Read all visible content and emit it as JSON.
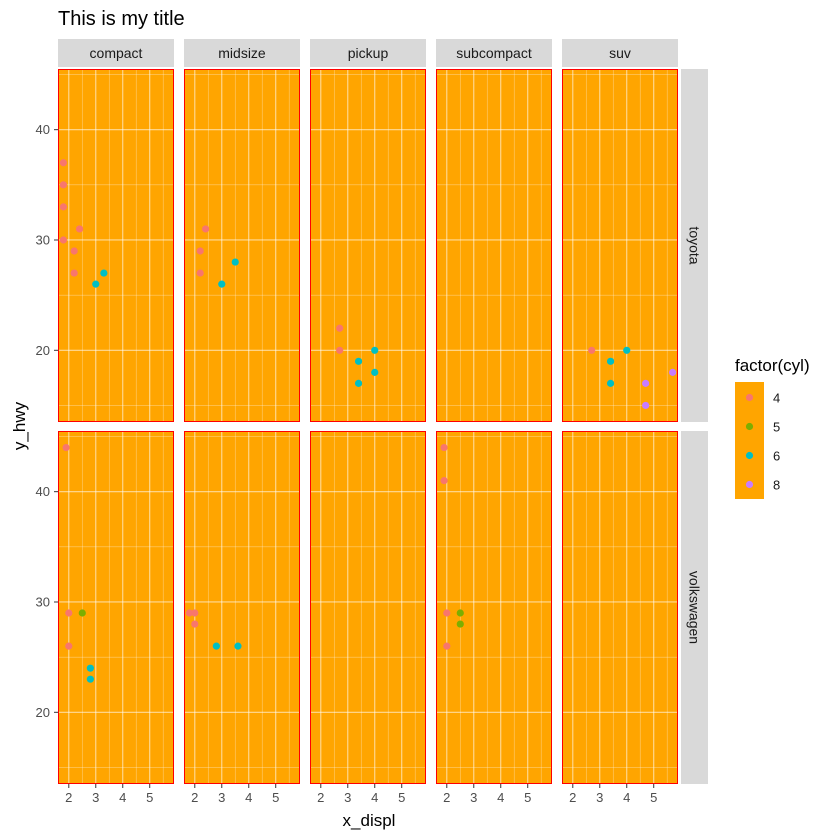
{
  "chart_data": {
    "type": "scatter",
    "title": "This is my title",
    "xlabel": "x_displ",
    "ylabel": "y_hwy",
    "xlim": [
      1.6,
      5.9
    ],
    "ylim": [
      13.5,
      45.5
    ],
    "xticks": [
      2,
      3,
      4,
      5
    ],
    "yticks": [
      20,
      30,
      40
    ],
    "col_facets": [
      "compact",
      "midsize",
      "pickup",
      "subcompact",
      "suv"
    ],
    "row_facets": [
      "toyota",
      "volkswagen"
    ],
    "panel_fill": "#FFA500",
    "panel_border": "#FF0000",
    "grid": true,
    "legend": {
      "title": "factor(cyl)",
      "placement": "right",
      "background": "#FFA500",
      "entries": [
        {
          "label": "4",
          "color": "#F8766D"
        },
        {
          "label": "5",
          "color": "#7CAE00"
        },
        {
          "label": "6",
          "color": "#00BFC4"
        },
        {
          "label": "8",
          "color": "#C77CFF"
        }
      ]
    },
    "points": [
      {
        "row": "toyota",
        "col": "compact",
        "cyl": "4",
        "x": 1.8,
        "y": 37
      },
      {
        "row": "toyota",
        "col": "compact",
        "cyl": "4",
        "x": 1.8,
        "y": 35
      },
      {
        "row": "toyota",
        "col": "compact",
        "cyl": "4",
        "x": 1.8,
        "y": 33
      },
      {
        "row": "toyota",
        "col": "compact",
        "cyl": "4",
        "x": 1.8,
        "y": 30
      },
      {
        "row": "toyota",
        "col": "compact",
        "cyl": "4",
        "x": 2.2,
        "y": 29
      },
      {
        "row": "toyota",
        "col": "compact",
        "cyl": "4",
        "x": 2.2,
        "y": 27
      },
      {
        "row": "toyota",
        "col": "compact",
        "cyl": "4",
        "x": 2.4,
        "y": 31
      },
      {
        "row": "toyota",
        "col": "compact",
        "cyl": "6",
        "x": 3.0,
        "y": 26
      },
      {
        "row": "toyota",
        "col": "compact",
        "cyl": "6",
        "x": 3.3,
        "y": 27
      },
      {
        "row": "toyota",
        "col": "midsize",
        "cyl": "4",
        "x": 2.2,
        "y": 29
      },
      {
        "row": "toyota",
        "col": "midsize",
        "cyl": "4",
        "x": 2.2,
        "y": 27
      },
      {
        "row": "toyota",
        "col": "midsize",
        "cyl": "4",
        "x": 2.4,
        "y": 31
      },
      {
        "row": "toyota",
        "col": "midsize",
        "cyl": "6",
        "x": 3.0,
        "y": 26
      },
      {
        "row": "toyota",
        "col": "midsize",
        "cyl": "6",
        "x": 3.5,
        "y": 28
      },
      {
        "row": "toyota",
        "col": "pickup",
        "cyl": "4",
        "x": 2.7,
        "y": 22
      },
      {
        "row": "toyota",
        "col": "pickup",
        "cyl": "4",
        "x": 2.7,
        "y": 20
      },
      {
        "row": "toyota",
        "col": "pickup",
        "cyl": "6",
        "x": 3.4,
        "y": 19
      },
      {
        "row": "toyota",
        "col": "pickup",
        "cyl": "6",
        "x": 3.4,
        "y": 17
      },
      {
        "row": "toyota",
        "col": "pickup",
        "cyl": "6",
        "x": 4.0,
        "y": 20
      },
      {
        "row": "toyota",
        "col": "pickup",
        "cyl": "6",
        "x": 4.0,
        "y": 18
      },
      {
        "row": "toyota",
        "col": "suv",
        "cyl": "4",
        "x": 2.7,
        "y": 20
      },
      {
        "row": "toyota",
        "col": "suv",
        "cyl": "6",
        "x": 3.4,
        "y": 19
      },
      {
        "row": "toyota",
        "col": "suv",
        "cyl": "6",
        "x": 3.4,
        "y": 17
      },
      {
        "row": "toyota",
        "col": "suv",
        "cyl": "6",
        "x": 4.0,
        "y": 20
      },
      {
        "row": "toyota",
        "col": "suv",
        "cyl": "8",
        "x": 4.7,
        "y": 17
      },
      {
        "row": "toyota",
        "col": "suv",
        "cyl": "8",
        "x": 4.7,
        "y": 15
      },
      {
        "row": "toyota",
        "col": "suv",
        "cyl": "8",
        "x": 5.7,
        "y": 18
      },
      {
        "row": "volkswagen",
        "col": "compact",
        "cyl": "4",
        "x": 1.9,
        "y": 44
      },
      {
        "row": "volkswagen",
        "col": "compact",
        "cyl": "4",
        "x": 2.0,
        "y": 29
      },
      {
        "row": "volkswagen",
        "col": "compact",
        "cyl": "4",
        "x": 2.0,
        "y": 26
      },
      {
        "row": "volkswagen",
        "col": "compact",
        "cyl": "5",
        "x": 2.5,
        "y": 29
      },
      {
        "row": "volkswagen",
        "col": "compact",
        "cyl": "6",
        "x": 2.8,
        "y": 24
      },
      {
        "row": "volkswagen",
        "col": "compact",
        "cyl": "6",
        "x": 2.8,
        "y": 23
      },
      {
        "row": "volkswagen",
        "col": "midsize",
        "cyl": "4",
        "x": 1.8,
        "y": 29
      },
      {
        "row": "volkswagen",
        "col": "midsize",
        "cyl": "4",
        "x": 2.0,
        "y": 29
      },
      {
        "row": "volkswagen",
        "col": "midsize",
        "cyl": "4",
        "x": 2.0,
        "y": 28
      },
      {
        "row": "volkswagen",
        "col": "midsize",
        "cyl": "6",
        "x": 2.8,
        "y": 26
      },
      {
        "row": "volkswagen",
        "col": "midsize",
        "cyl": "6",
        "x": 3.6,
        "y": 26
      },
      {
        "row": "volkswagen",
        "col": "subcompact",
        "cyl": "4",
        "x": 1.9,
        "y": 44
      },
      {
        "row": "volkswagen",
        "col": "subcompact",
        "cyl": "4",
        "x": 1.9,
        "y": 41
      },
      {
        "row": "volkswagen",
        "col": "subcompact",
        "cyl": "4",
        "x": 2.0,
        "y": 29
      },
      {
        "row": "volkswagen",
        "col": "subcompact",
        "cyl": "4",
        "x": 2.0,
        "y": 26
      },
      {
        "row": "volkswagen",
        "col": "subcompact",
        "cyl": "5",
        "x": 2.5,
        "y": 29
      },
      {
        "row": "volkswagen",
        "col": "subcompact",
        "cyl": "5",
        "x": 2.5,
        "y": 28
      }
    ]
  }
}
